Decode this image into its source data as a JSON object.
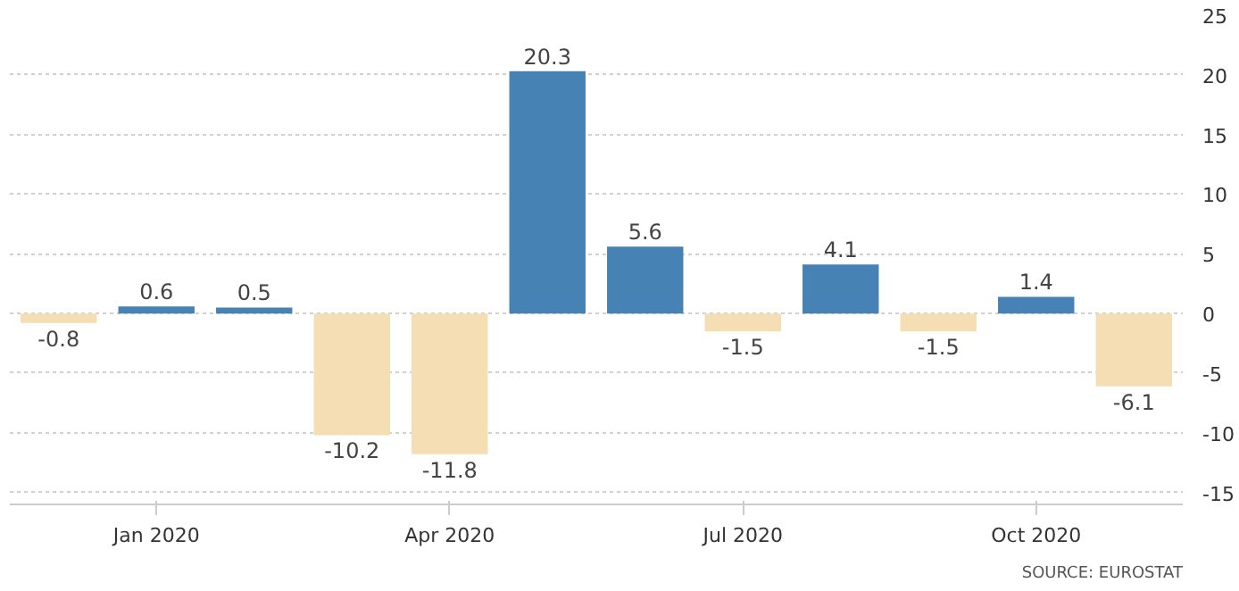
{
  "chart_data": {
    "type": "bar",
    "categories": [
      null,
      "Jan 2020",
      null,
      null,
      "Apr 2020",
      null,
      null,
      "Jul 2020",
      null,
      null,
      "Oct 2020",
      null
    ],
    "values": [
      -0.8,
      0.6,
      0.5,
      -10.2,
      -11.8,
      20.3,
      5.6,
      -1.5,
      4.1,
      -1.5,
      1.4,
      -6.1
    ],
    "colors": [
      "#f5deb3",
      "#4682b4",
      "#4682b4",
      "#f5deb3",
      "#f5deb3",
      "#4682b4",
      "#4682b4",
      "#f5deb3",
      "#4682b4",
      "#f5deb3",
      "#4682b4",
      "#f5deb3"
    ],
    "ylim": [
      -16,
      25
    ],
    "yticks": [
      -15,
      -10,
      -5,
      0,
      5,
      10,
      15,
      20,
      25
    ],
    "grid": "y",
    "data_labels": true,
    "annotations": [
      "SOURCE: EUROSTAT"
    ]
  }
}
